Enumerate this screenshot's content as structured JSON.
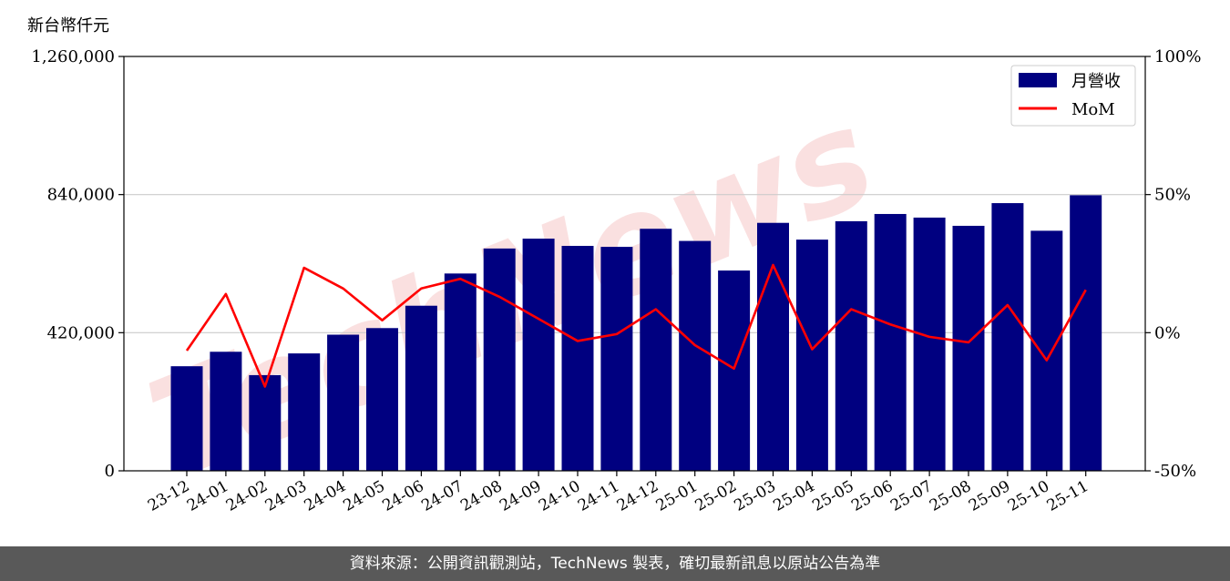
{
  "unit_label": "新台幣仟元",
  "footer_text": "資料來源：公開資訊觀測站，TechNews 製表，確切最新訊息以原站公告為準",
  "watermark": "TechNews",
  "colors": {
    "bar": "#000080",
    "line": "#ff0000",
    "grid": "#cccccc",
    "footer_bg": "#595959",
    "watermark": "#f5c6c6"
  },
  "chart_data": {
    "type": "bar",
    "categories": [
      "23-12",
      "24-01",
      "24-02",
      "24-03",
      "24-04",
      "24-05",
      "24-06",
      "24-07",
      "24-08",
      "24-09",
      "24-10",
      "24-11",
      "24-12",
      "25-01",
      "25-02",
      "25-03",
      "25-04",
      "25-05",
      "25-06",
      "25-07",
      "25-08",
      "25-09",
      "25-10",
      "25-11"
    ],
    "series": [
      {
        "name": "月營收",
        "type": "bar",
        "axis": "left",
        "values": [
          318000,
          362000,
          291000,
          357000,
          414000,
          434000,
          502000,
          600000,
          676000,
          706000,
          684000,
          681000,
          736000,
          699000,
          609000,
          754000,
          703000,
          759000,
          781000,
          770000,
          745000,
          814000,
          730000,
          838000
        ]
      },
      {
        "name": "MoM",
        "type": "line",
        "axis": "right",
        "values": [
          -6.5,
          14,
          -19.5,
          23.5,
          16,
          4.5,
          16,
          19.5,
          13,
          5,
          -3,
          -0.5,
          8.5,
          -4.5,
          -13,
          24.5,
          -6,
          8.5,
          3,
          -1.5,
          -3.5,
          10,
          -10,
          15.5
        ]
      }
    ],
    "ylim_left": [
      0,
      1260000
    ],
    "yticks_left": [
      "0",
      "420,000",
      "840,000",
      "1,260,000"
    ],
    "yticks_left_values": [
      0,
      420000,
      840000,
      1260000
    ],
    "ylim_right": [
      -50,
      100
    ],
    "yticks_right": [
      "-50%",
      "0%",
      "50%",
      "100%"
    ],
    "yticks_right_values": [
      -50,
      0,
      50,
      100
    ],
    "grid": "horizontal",
    "legend_position": "top-right"
  }
}
